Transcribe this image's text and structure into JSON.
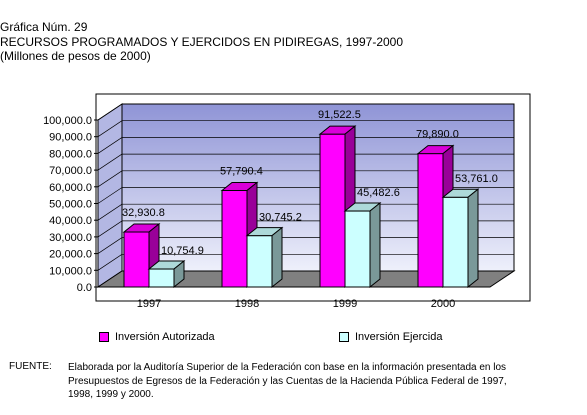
{
  "header": {
    "line1": "Gráfica Núm. 29",
    "line2": "RECURSOS PROGRAMADOS Y EJERCIDOS EN PIDIREGAS, 1997-2000",
    "line3": "(Millones de pesos de 2000)"
  },
  "chart_data": {
    "type": "bar",
    "categories": [
      "1997",
      "1998",
      "1999",
      "2000"
    ],
    "series": [
      {
        "name": "Inversión Autorizada",
        "values": [
          32930.8,
          57790.4,
          91522.5,
          79890.0
        ],
        "labels": [
          "32,930.8",
          "57,790.4",
          "91,522.5",
          "79,890.0"
        ],
        "color": "#ff00ff"
      },
      {
        "name": "Inversión Ejercida",
        "values": [
          10754.9,
          30745.2,
          45482.6,
          53761.0
        ],
        "labels": [
          "10,754.9",
          "30,745.2",
          "45,482.6",
          "53,761.0"
        ],
        "color": "#ccffff"
      }
    ],
    "ylim": [
      0,
      100000
    ],
    "yticks": [
      "0.0",
      "10,000.0",
      "20,000.0",
      "30,000.0",
      "40,000.0",
      "50,000.0",
      "60,000.0",
      "70,000.0",
      "80,000.0",
      "90,000.0",
      "100,000.0"
    ],
    "grid": true,
    "legend_position": "bottom",
    "three_d": true
  },
  "legend": {
    "autorizada": "Inversión Autorizada",
    "ejercida": "Inversión Ejercida"
  },
  "source": {
    "label": "FUENTE:",
    "text": "Elaborada por la Auditoría Superior de la Federación con base en la información presentada en los Presupuestos de Egresos de la Federación y las Cuentas de la Hacienda Pública Federal de 1997, 1998, 1999 y 2000."
  }
}
